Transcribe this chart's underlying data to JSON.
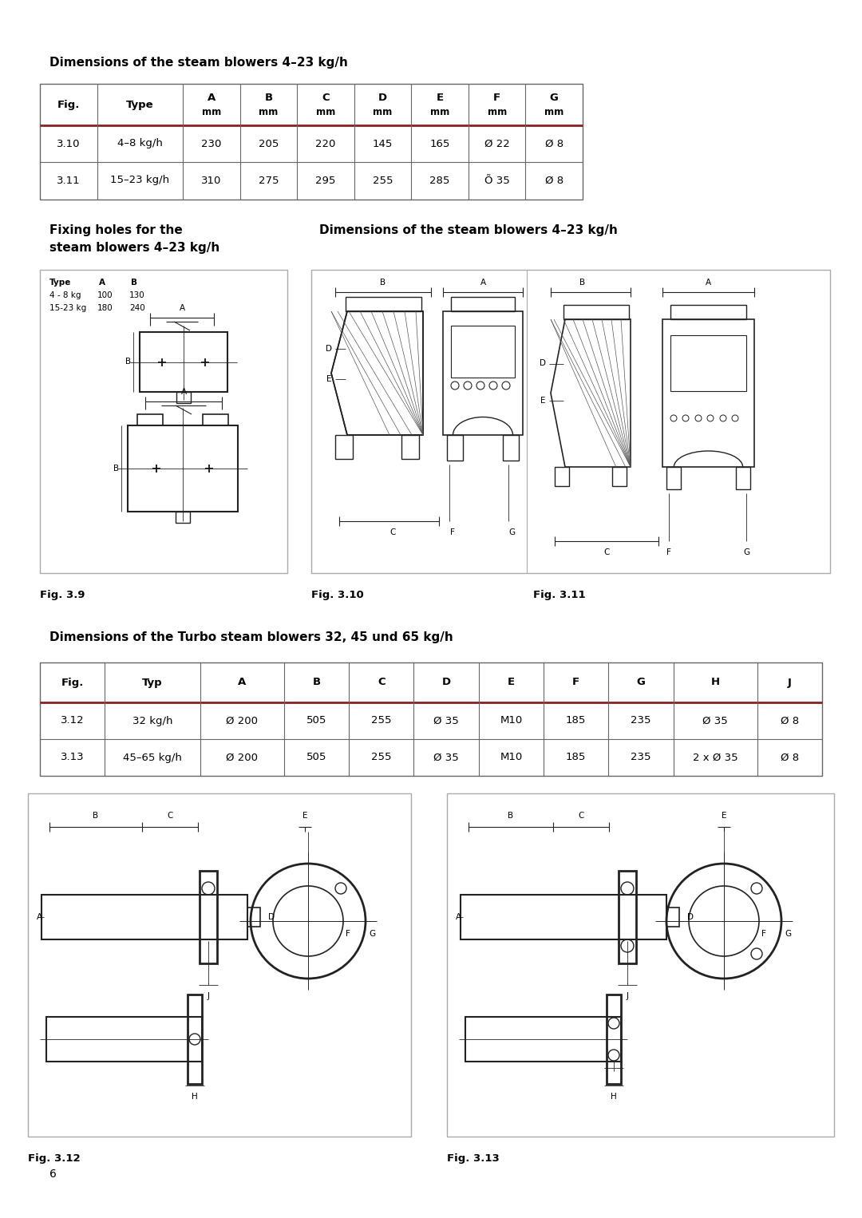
{
  "bg_color": "#ffffff",
  "section1_title": "Dimensions of the steam blowers 4–23 kg/h",
  "table1_headers_line1": [
    "Fig.",
    "Type",
    "A",
    "B",
    "C",
    "D",
    "E",
    "F",
    "G"
  ],
  "table1_headers_line2": [
    "",
    "",
    "mm",
    "mm",
    "mm",
    "mm",
    "mm",
    "mm",
    "mm"
  ],
  "table1_rows": [
    [
      "3.10",
      "4–8 kg/h",
      "230",
      "205",
      "220",
      "145",
      "165",
      "Ø 22",
      "Ø 8"
    ],
    [
      "3.11",
      "15–23 kg/h",
      "310",
      "275",
      "295",
      "255",
      "285",
      "Õ 35",
      "Ø 8"
    ]
  ],
  "section2a_line1": "Fixing holes for the",
  "section2a_line2": "steam blowers 4–23 kg/h",
  "section2b_title": "Dimensions of the steam blowers 4–23 kg/h",
  "fig39_caption": "Fig. 3.9",
  "fig310_caption": "Fig. 3.10",
  "fig311_caption": "Fig. 3.11",
  "section3_title": "Dimensions of the Turbo steam blowers 32, 45 und 65 kg/h",
  "table2_headers": [
    "Fig.",
    "Typ",
    "A",
    "B",
    "C",
    "D",
    "E",
    "F",
    "G",
    "H",
    "J"
  ],
  "table2_rows": [
    [
      "3.12",
      "32 kg/h",
      "Ø 200",
      "505",
      "255",
      "Ø 35",
      "M10",
      "185",
      "235",
      "Ø 35",
      "Ø 8"
    ],
    [
      "3.13",
      "45–65 kg/h",
      "Ø 200",
      "505",
      "255",
      "Ø 35",
      "M10",
      "185",
      "235",
      "2 x Ø 35",
      "Ø 8"
    ]
  ],
  "fig312_caption": "Fig. 3.12",
  "fig313_caption": "Fig. 3.13",
  "page_number": "6",
  "header_line_color": "#8B2020",
  "border_color": "#aaaaaa",
  "table_border_color": "#666666",
  "dark": "#222222",
  "mid": "#555555"
}
